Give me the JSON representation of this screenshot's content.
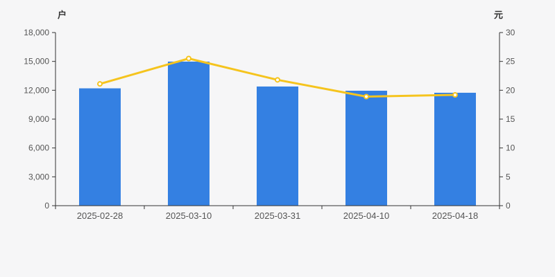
{
  "page": {
    "background_color": "#f6f6f7"
  },
  "chart_data": {
    "type": "bar+line",
    "title": "",
    "categories": [
      "2025-02-28",
      "2025-03-10",
      "2025-03-31",
      "2025-04-10",
      "2025-04-18"
    ],
    "series": [
      {
        "name": "户",
        "type": "bar",
        "axis": "left",
        "color": "#3480e2",
        "values": [
          12200,
          14980,
          12390,
          11950,
          11740
        ]
      },
      {
        "name": "元",
        "type": "line",
        "axis": "right",
        "color": "#f5c41e",
        "marker": "empty-circle",
        "marker_fill": "#ffffff",
        "values": [
          21.1,
          25.5,
          21.8,
          18.9,
          19.2
        ]
      }
    ],
    "left_axis": {
      "label": "户",
      "min": 0,
      "max": 18000,
      "tick_step": 3000,
      "ticks": [
        0,
        3000,
        6000,
        9000,
        12000,
        15000,
        18000
      ],
      "tick_labels": [
        "0",
        "3,000",
        "6,000",
        "9,000",
        "12,000",
        "15,000",
        "18,000"
      ]
    },
    "right_axis": {
      "label": "元",
      "min": 0,
      "max": 30,
      "tick_step": 5,
      "ticks": [
        0,
        5,
        10,
        15,
        20,
        25,
        30
      ],
      "tick_labels": [
        "0",
        "5",
        "10",
        "15",
        "20",
        "25",
        "30"
      ]
    },
    "grid": false,
    "legend": false,
    "axis_color": "#333333",
    "tick_text_color": "#555555"
  }
}
